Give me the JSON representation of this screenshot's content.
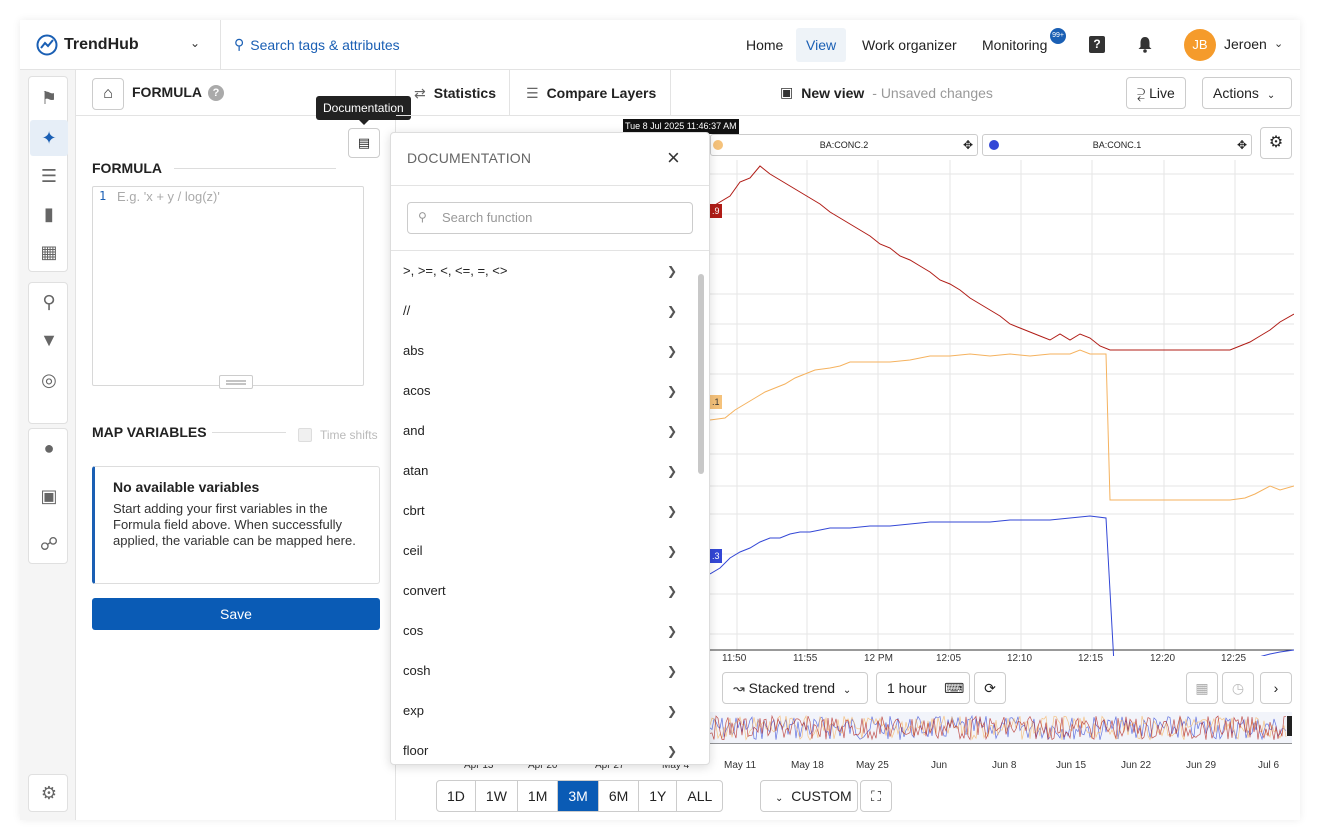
{
  "app": {
    "name": "TrendHub"
  },
  "search": {
    "label": "Search tags & attributes"
  },
  "nav": {
    "home": "Home",
    "view": "View",
    "work": "Work organizer",
    "monitoring": "Monitoring",
    "badge": "99+"
  },
  "user": {
    "initials": "JB",
    "name": "Jeroen"
  },
  "panel": {
    "title": "FORMULA",
    "formula_label": "FORMULA",
    "line_number": "1",
    "placeholder": "E.g. 'x + y / log(z)'",
    "tooltip": "Documentation",
    "map_label": "MAP VARIABLES",
    "time_shifts": "Time shifts",
    "novars_title": "No available variables",
    "novars_text": "Start adding your first variables in the Formula field above. When successfully applied, the variable can be mapped here.",
    "save": "Save"
  },
  "toolbar": {
    "statistics": "Statistics",
    "compare": "Compare Layers",
    "newview": "New view",
    "unsaved": "- Unsaved changes",
    "live": "Live",
    "actions": "Actions"
  },
  "doc": {
    "title": "DOCUMENTATION",
    "search_placeholder": "Search function",
    "items": [
      ">, >=, <, <=, =, <>",
      "//",
      "abs",
      "acos",
      "and",
      "atan",
      "cbrt",
      "ceil",
      "convert",
      "cos",
      "cosh",
      "exp",
      "floor"
    ]
  },
  "chart": {
    "tooltip_time": "Tue 8 Jul 2025 11:46:37 AM",
    "legend": [
      "BA:CONC.2",
      "BA:CONC.1"
    ],
    "value_tags": [
      ".9",
      ".1",
      ".3"
    ],
    "x_ticks": [
      "11:50",
      "11:55",
      "12 PM",
      "12:05",
      "12:10",
      "12:15",
      "12:20",
      "12:25"
    ],
    "nav_ticks": [
      "Apr 13",
      "Apr 20",
      "Apr 27",
      "May 4",
      "May 11",
      "May 18",
      "May 25",
      "Jun",
      "Jun 8",
      "Jun 15",
      "Jun 22",
      "Jun 29",
      "Jul 6"
    ],
    "stacked": "Stacked trend",
    "interval": "1 hour",
    "ranges": [
      "1D",
      "1W",
      "1M",
      "3M",
      "6M",
      "1Y",
      "ALL"
    ],
    "selected_range": "3M",
    "custom": "CUSTOM",
    "colors": {
      "red": "#b01c16",
      "orange": "#f5b25e",
      "blue": "#3347d6"
    }
  }
}
